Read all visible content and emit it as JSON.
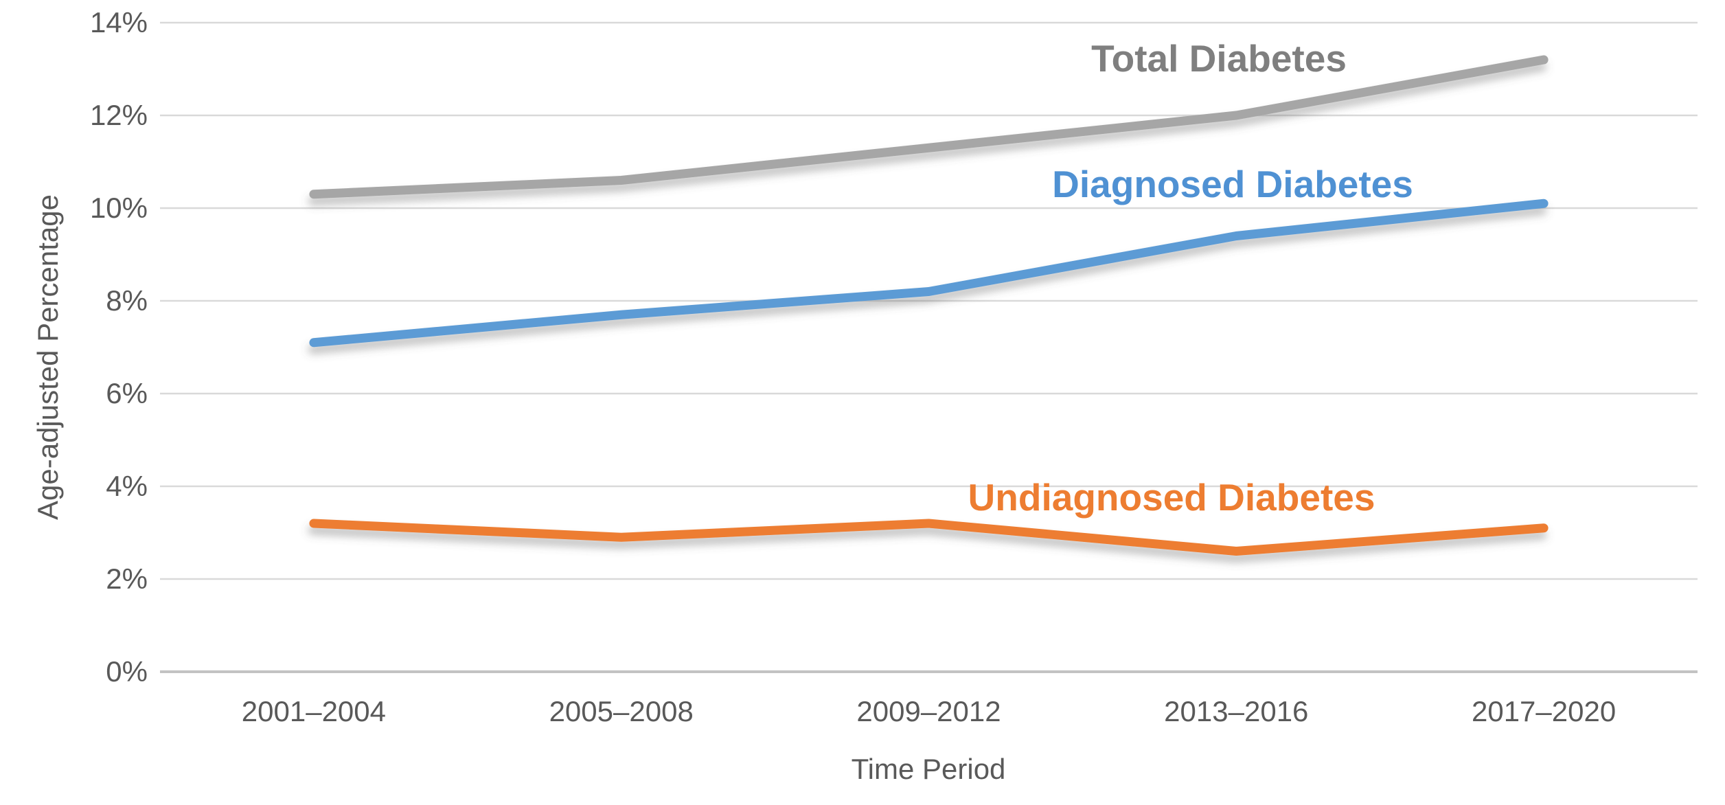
{
  "chart_data": {
    "type": "line",
    "title": "",
    "xlabel": "Time Period",
    "ylabel": "Age-adjusted Percentage",
    "categories": [
      "2001–2004",
      "2005–2008",
      "2009–2012",
      "2013–2016",
      "2017–2020"
    ],
    "series": [
      {
        "name": "Total Diabetes",
        "color": "#a6a6a6",
        "label_color": "#7f7f7f",
        "values": [
          10.3,
          10.6,
          11.3,
          12.0,
          13.2
        ]
      },
      {
        "name": "Diagnosed Diabetes",
        "color": "#5b9bd5",
        "label_color": "#4f91d3",
        "values": [
          7.1,
          7.7,
          8.2,
          9.4,
          10.1
        ]
      },
      {
        "name": "Undiagnosed Diabetes",
        "color": "#ed7d31",
        "label_color": "#ed7d31",
        "values": [
          3.2,
          2.9,
          3.2,
          2.6,
          3.1
        ]
      }
    ],
    "ylim": [
      0,
      14
    ],
    "ytick_step": 2,
    "ytick_labels": [
      "0%",
      "2%",
      "4%",
      "6%",
      "8%",
      "10%",
      "12%",
      "14%"
    ],
    "grid": "horizontal-only",
    "legend_position": "inline-data-labels",
    "gridline_color": "#d9d9d9",
    "baseline_color": "#c3c3c3",
    "axis_text_color": "#595959"
  }
}
